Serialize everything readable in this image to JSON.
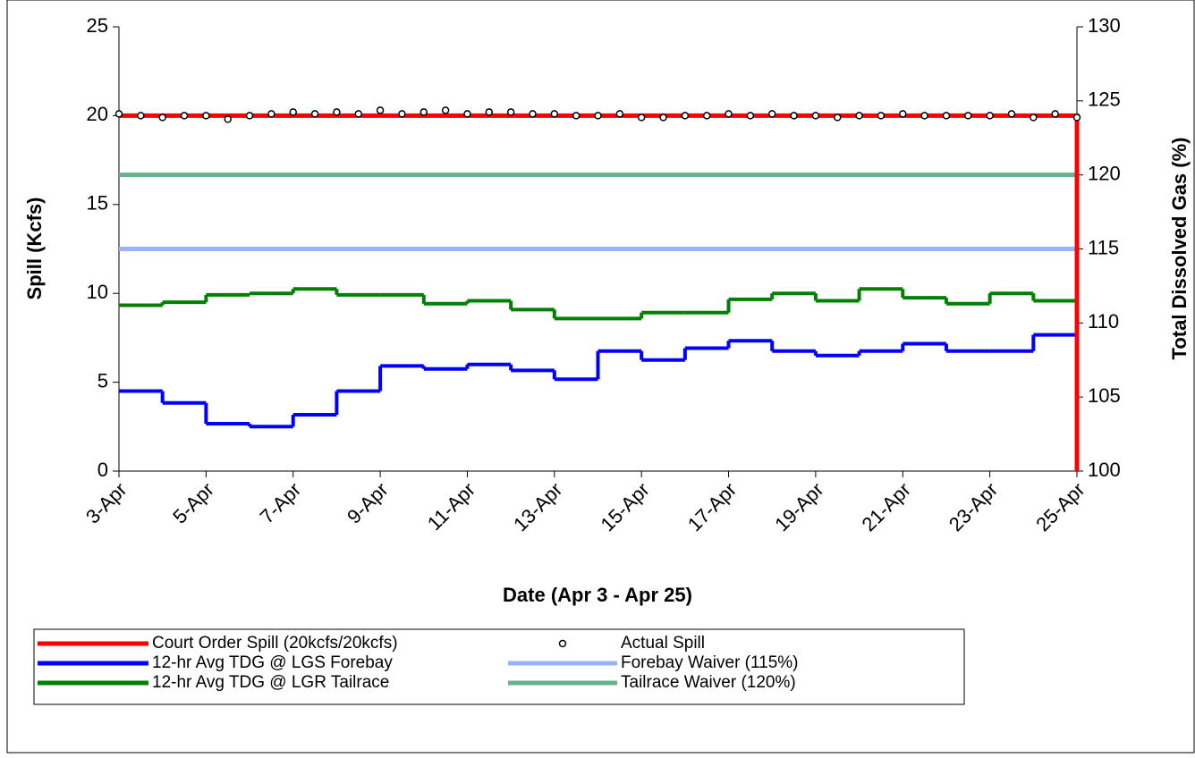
{
  "chart_data": {
    "type": "line",
    "xlabel": "Date (Apr 3 - Apr 25)",
    "ylabel": "Spill (Kcfs)",
    "y2label": "Total Dissolved Gas (%)",
    "xlim": [
      3,
      25
    ],
    "xticks": [
      {
        "value": 3,
        "label": "3-Apr"
      },
      {
        "value": 5,
        "label": "5-Apr"
      },
      {
        "value": 7,
        "label": "7-Apr"
      },
      {
        "value": 9,
        "label": "9-Apr"
      },
      {
        "value": 11,
        "label": "11-Apr"
      },
      {
        "value": 13,
        "label": "13-Apr"
      },
      {
        "value": 15,
        "label": "15-Apr"
      },
      {
        "value": 17,
        "label": "17-Apr"
      },
      {
        "value": 19,
        "label": "19-Apr"
      },
      {
        "value": 21,
        "label": "21-Apr"
      },
      {
        "value": 23,
        "label": "23-Apr"
      },
      {
        "value": 25,
        "label": "25-Apr"
      }
    ],
    "ylim": [
      0,
      25
    ],
    "yticks": [
      0,
      5,
      10,
      15,
      20,
      25
    ],
    "y2lim": [
      100,
      130
    ],
    "y2ticks": [
      100,
      105,
      110,
      115,
      120,
      125,
      130
    ],
    "series": [
      {
        "name": "Court Order Spill (20kcfs/20kcfs)",
        "color": "#ff0000",
        "x": [
          3,
          25,
          25
        ],
        "values": [
          20,
          20,
          0
        ]
      },
      {
        "name": "Actual Spill",
        "color": "#000000",
        "marker": "circle",
        "x": [
          3,
          3.5,
          4,
          4.5,
          5,
          5.5,
          6,
          6.5,
          7,
          7.5,
          8,
          8.5,
          9,
          9.5,
          10,
          10.5,
          11,
          11.5,
          12,
          12.5,
          13,
          13.5,
          14,
          14.5,
          15,
          15.5,
          16,
          16.5,
          17,
          17.5,
          18,
          18.5,
          19,
          19.5,
          20,
          20.5,
          21,
          21.5,
          22,
          22.5,
          23,
          23.5,
          24,
          24.5,
          25
        ],
        "values": [
          20.1,
          20.0,
          19.9,
          20.0,
          20.0,
          19.8,
          20.0,
          20.1,
          20.2,
          20.1,
          20.2,
          20.1,
          20.3,
          20.1,
          20.2,
          20.3,
          20.1,
          20.2,
          20.2,
          20.1,
          20.1,
          20.0,
          20.0,
          20.1,
          19.9,
          19.9,
          20.0,
          20.0,
          20.1,
          20.0,
          20.1,
          20.0,
          20.0,
          19.9,
          20.0,
          20.0,
          20.1,
          20.0,
          20.0,
          20.0,
          20.0,
          20.1,
          19.9,
          20.1,
          19.9
        ]
      },
      {
        "name": "12-hr Avg TDG @ LGS Forebay",
        "color": "#0000ff",
        "axis": "y2",
        "drawstyle": "steps-post",
        "x": [
          3,
          4,
          5,
          6,
          7,
          8,
          9,
          10,
          11,
          12,
          13,
          14,
          15,
          16,
          17,
          18,
          19,
          20,
          21,
          22,
          23,
          24,
          25
        ],
        "values": [
          105.4,
          104.6,
          103.2,
          103.0,
          103.8,
          105.4,
          107.1,
          106.9,
          107.2,
          106.8,
          106.2,
          108.1,
          107.5,
          108.3,
          108.8,
          108.1,
          107.8,
          108.1,
          108.6,
          108.1,
          108.1,
          109.2,
          109.2
        ]
      },
      {
        "name": "Forebay Waiver (115%)",
        "color": "#99b3ff",
        "axis": "y2",
        "x": [
          3,
          25
        ],
        "values": [
          115,
          115
        ]
      },
      {
        "name": "12-hr Avg TDG @ LGR Tailrace",
        "color": "#008000",
        "axis": "y2",
        "drawstyle": "steps-post",
        "x": [
          3,
          4,
          5,
          6,
          7,
          8,
          9,
          10,
          11,
          12,
          13,
          14,
          15,
          16,
          17,
          18,
          19,
          20,
          21,
          22,
          23,
          24,
          25
        ],
        "values": [
          111.2,
          111.4,
          111.9,
          112.0,
          112.3,
          111.9,
          111.9,
          111.3,
          111.5,
          110.9,
          110.3,
          110.3,
          110.7,
          110.7,
          111.6,
          112.0,
          111.5,
          112.3,
          111.7,
          111.3,
          112.0,
          111.5,
          111.5
        ]
      },
      {
        "name": "Tailrace Waiver (120%)",
        "color": "#66b38c",
        "axis": "y2",
        "x": [
          3,
          25
        ],
        "values": [
          120,
          120
        ]
      }
    ]
  }
}
